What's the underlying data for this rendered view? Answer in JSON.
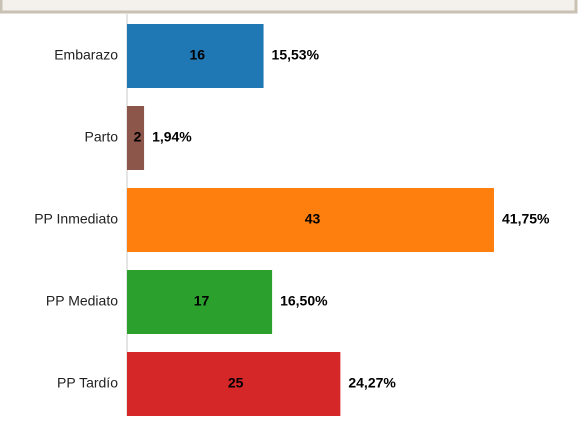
{
  "chart_data": {
    "type": "bar",
    "orientation": "horizontal",
    "categories": [
      "Embarazo",
      "Parto",
      "PP Inmediato",
      "PP Mediato",
      "PP Tardío"
    ],
    "values": [
      16,
      2,
      43,
      17,
      25
    ],
    "percent_labels": [
      "15,53%",
      "1,94%",
      "41,75%",
      "16,50%",
      "24,27%"
    ],
    "colors": [
      "#1f77b4",
      "#8c564b",
      "#ff7f0e",
      "#2ca02c",
      "#d62728"
    ]
  }
}
